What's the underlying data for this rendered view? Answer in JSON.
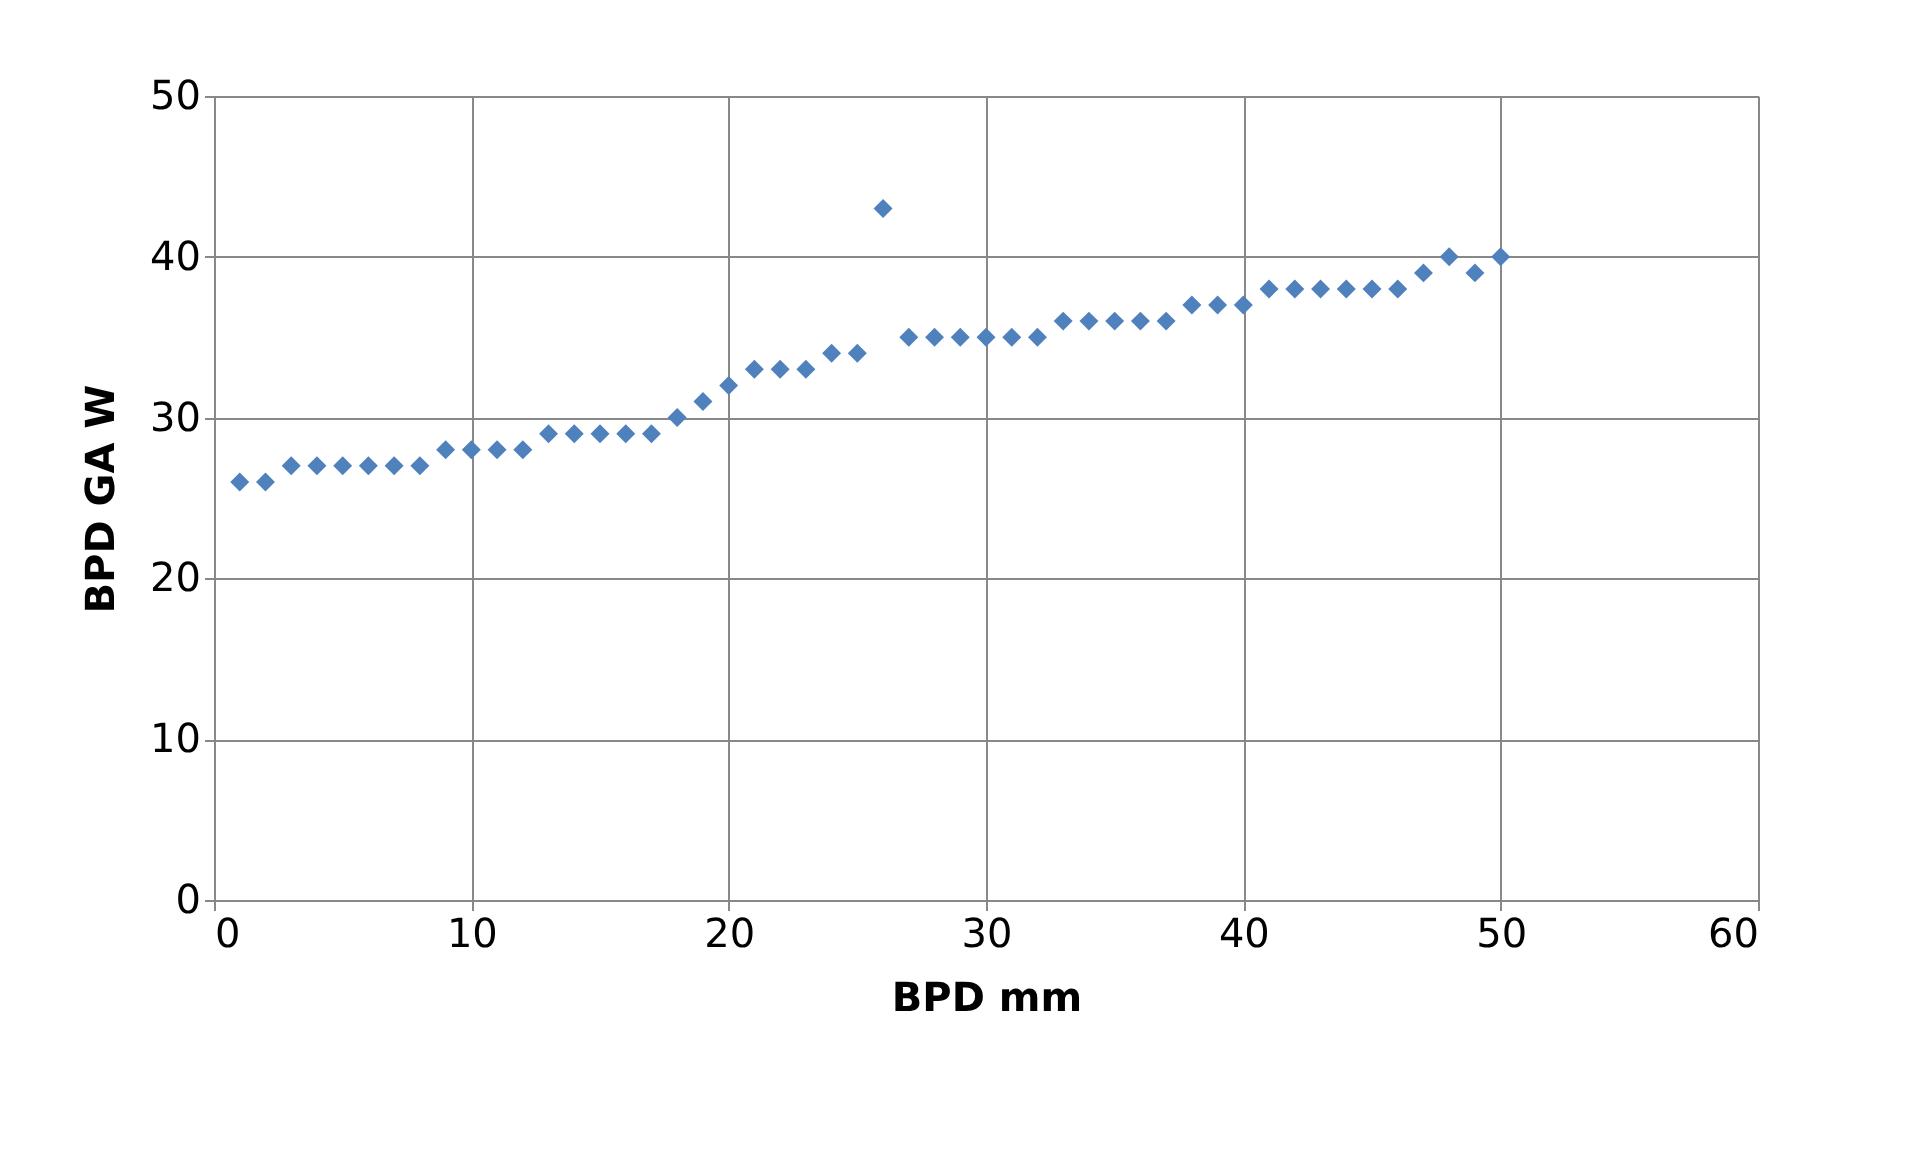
{
  "chart_data": {
    "type": "scatter",
    "xlabel": "BPD mm",
    "ylabel": "BPD GA W",
    "x": [
      1,
      2,
      3,
      4,
      5,
      6,
      7,
      8,
      9,
      10,
      11,
      12,
      13,
      14,
      15,
      16,
      17,
      18,
      19,
      20,
      21,
      22,
      23,
      24,
      25,
      26,
      27,
      28,
      29,
      30,
      31,
      32,
      33,
      34,
      35,
      36,
      37,
      38,
      39,
      40,
      41,
      42,
      43,
      44,
      45,
      46,
      47,
      48,
      49,
      50
    ],
    "series": [
      {
        "color": "#4f81bd",
        "values": [
          26,
          26,
          27,
          27,
          27,
          27,
          27,
          27,
          28,
          28,
          28,
          28,
          29,
          29,
          29,
          29,
          29,
          30,
          31,
          32,
          33,
          33,
          33,
          34,
          34,
          43,
          35,
          35,
          35,
          35,
          35,
          35,
          36,
          36,
          36,
          36,
          36,
          37,
          37,
          37,
          38,
          38,
          38,
          38,
          38,
          38,
          39,
          40,
          39,
          40
        ]
      }
    ],
    "xlim": [
      0,
      60
    ],
    "xticks": [
      0,
      10,
      20,
      30,
      40,
      50,
      60
    ],
    "ylim": [
      0,
      50
    ],
    "yticks": [
      0,
      10,
      20,
      30,
      40,
      50
    ],
    "grid": true,
    "marker": "diamond",
    "legend": false
  }
}
